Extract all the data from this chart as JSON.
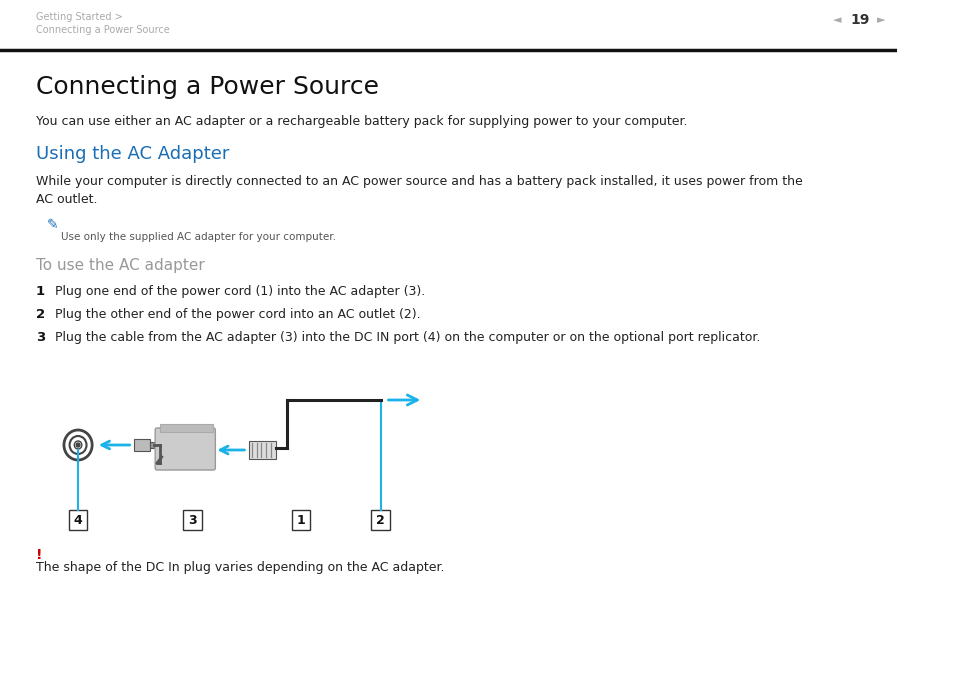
{
  "bg_color": "#ffffff",
  "header_line1": "Getting Started >",
  "header_line2": "Connecting a Power Source",
  "header_page_num": "19",
  "title": "Connecting a Power Source",
  "intro_text": "You can use either an AC adapter or a rechargeable battery pack for supplying power to your computer.",
  "section_title": "Using the AC Adapter",
  "section_title_color": "#1a6eb5",
  "body_text1": "While your computer is directly connected to an AC power source and has a battery pack installed, it uses power from the\nAC outlet.",
  "note_text": "Use only the supplied AC adapter for your computer.",
  "subsection_title": "To use the AC adapter",
  "subsection_color": "#999999",
  "step1_num": "1",
  "step1": "Plug one end of the power cord (1) into the AC adapter (3).",
  "step2_num": "2",
  "step2": "Plug the other end of the power cord into an AC outlet (2).",
  "step3_num": "3",
  "step3": "Plug the cable from the AC adapter (3) into the DC IN port (4) on the computer or on the optional port replicator.",
  "warning_exclaim": "!",
  "warning_text": "The shape of the DC In plug varies depending on the AC adapter.",
  "warning_color": "#cc0000",
  "arrow_color": "#1ab2e8",
  "line_color": "#1ab2e8",
  "header_color": "#aaaaaa",
  "text_color": "#222222",
  "note_color": "#555555"
}
